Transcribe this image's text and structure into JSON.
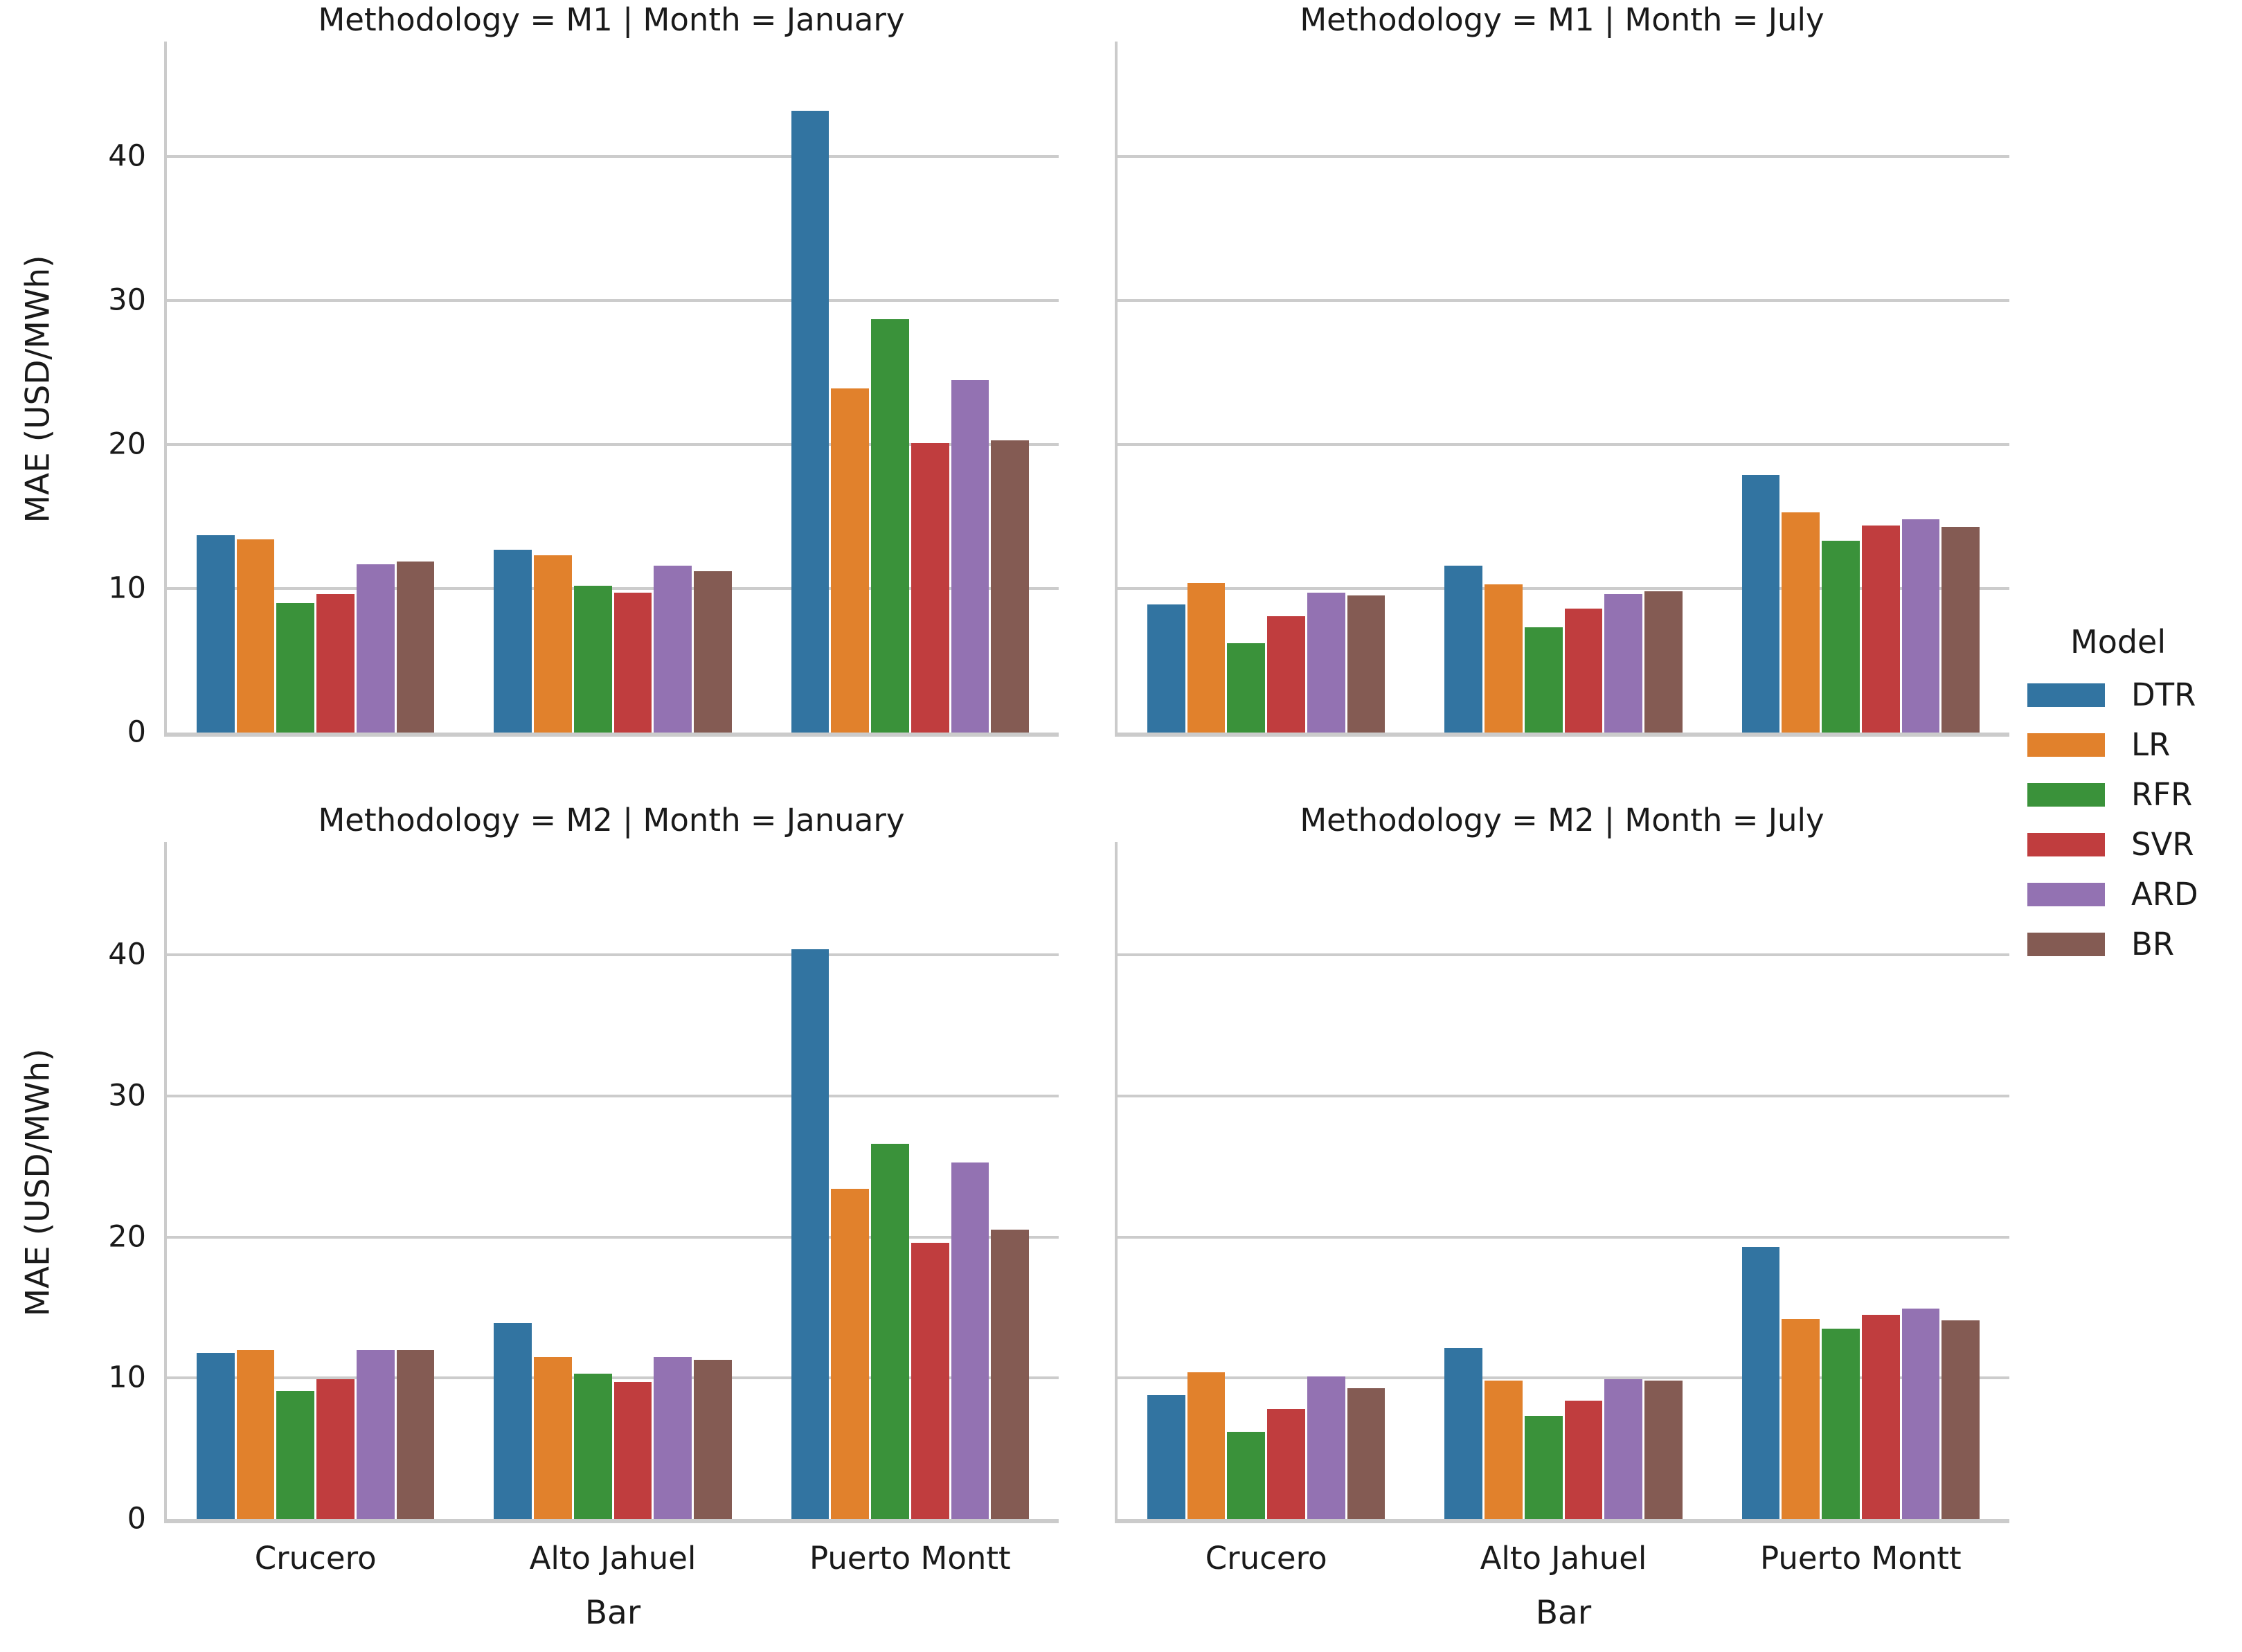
{
  "figure": {
    "background": "#ffffff",
    "grid_color": "#cccccc",
    "spine_color": "#cbcbcb",
    "text_color": "#1a1a1a"
  },
  "legend": {
    "title": "Model",
    "position": "right",
    "items": [
      {
        "label": "DTR",
        "color": "#3274a1"
      },
      {
        "label": "LR",
        "color": "#e1812c"
      },
      {
        "label": "RFR",
        "color": "#3a923a"
      },
      {
        "label": "SVR",
        "color": "#c03d3e"
      },
      {
        "label": "ARD",
        "color": "#9372b2"
      },
      {
        "label": "BR",
        "color": "#845b53"
      }
    ]
  },
  "chart_data": [
    {
      "type": "bar",
      "title": "Methodology = M1 | Month = January",
      "row": 0,
      "col": 0,
      "categories": [
        "Crucero",
        "Alto Jahuel",
        "Puerto Montt"
      ],
      "series": [
        {
          "name": "DTR",
          "values": [
            13.7,
            12.7,
            43.2
          ]
        },
        {
          "name": "LR",
          "values": [
            13.4,
            12.3,
            23.9
          ]
        },
        {
          "name": "RFR",
          "values": [
            9.0,
            10.2,
            28.7
          ]
        },
        {
          "name": "SVR",
          "values": [
            9.6,
            9.7,
            20.1
          ]
        },
        {
          "name": "ARD",
          "values": [
            11.7,
            11.6,
            24.5
          ]
        },
        {
          "name": "BR",
          "values": [
            11.9,
            11.2,
            20.3
          ]
        }
      ],
      "xlabel": "",
      "ylabel": "MAE (USD/MWh)",
      "ylim": [
        0,
        48
      ],
      "yticks": [
        0,
        10,
        20,
        30,
        40
      ],
      "grid": "horizontal"
    },
    {
      "type": "bar",
      "title": "Methodology = M1 | Month = July",
      "row": 0,
      "col": 1,
      "categories": [
        "Crucero",
        "Alto Jahuel",
        "Puerto Montt"
      ],
      "series": [
        {
          "name": "DTR",
          "values": [
            8.9,
            11.6,
            17.9
          ]
        },
        {
          "name": "LR",
          "values": [
            10.4,
            10.3,
            15.3
          ]
        },
        {
          "name": "RFR",
          "values": [
            6.2,
            7.3,
            13.3
          ]
        },
        {
          "name": "SVR",
          "values": [
            8.1,
            8.6,
            14.4
          ]
        },
        {
          "name": "ARD",
          "values": [
            9.7,
            9.6,
            14.8
          ]
        },
        {
          "name": "BR",
          "values": [
            9.5,
            9.8,
            14.3
          ]
        }
      ],
      "xlabel": "",
      "ylabel": "",
      "ylim": [
        0,
        48
      ],
      "yticks": [
        0,
        10,
        20,
        30,
        40
      ],
      "grid": "horizontal"
    },
    {
      "type": "bar",
      "title": "Methodology = M2 | Month = January",
      "row": 1,
      "col": 0,
      "categories": [
        "Crucero",
        "Alto Jahuel",
        "Puerto Montt"
      ],
      "series": [
        {
          "name": "DTR",
          "values": [
            11.8,
            13.9,
            40.4
          ]
        },
        {
          "name": "LR",
          "values": [
            12.0,
            11.5,
            23.4
          ]
        },
        {
          "name": "RFR",
          "values": [
            9.1,
            10.3,
            26.6
          ]
        },
        {
          "name": "SVR",
          "values": [
            9.9,
            9.7,
            19.6
          ]
        },
        {
          "name": "ARD",
          "values": [
            12.0,
            11.5,
            25.3
          ]
        },
        {
          "name": "BR",
          "values": [
            12.0,
            11.3,
            20.5
          ]
        }
      ],
      "xlabel": "Bar",
      "ylabel": "MAE (USD/MWh)",
      "ylim": [
        0,
        48
      ],
      "yticks": [
        0,
        10,
        20,
        30,
        40
      ],
      "grid": "horizontal"
    },
    {
      "type": "bar",
      "title": "Methodology = M2 | Month = July",
      "row": 1,
      "col": 1,
      "categories": [
        "Crucero",
        "Alto Jahuel",
        "Puerto Montt"
      ],
      "series": [
        {
          "name": "DTR",
          "values": [
            8.8,
            12.1,
            19.3
          ]
        },
        {
          "name": "LR",
          "values": [
            10.4,
            9.8,
            14.2
          ]
        },
        {
          "name": "RFR",
          "values": [
            6.2,
            7.3,
            13.5
          ]
        },
        {
          "name": "SVR",
          "values": [
            7.8,
            8.4,
            14.5
          ]
        },
        {
          "name": "ARD",
          "values": [
            10.1,
            9.9,
            14.9
          ]
        },
        {
          "name": "BR",
          "values": [
            9.3,
            9.8,
            14.1
          ]
        }
      ],
      "xlabel": "Bar",
      "ylabel": "",
      "ylim": [
        0,
        48
      ],
      "yticks": [
        0,
        10,
        20,
        30,
        40
      ],
      "grid": "horizontal"
    }
  ]
}
